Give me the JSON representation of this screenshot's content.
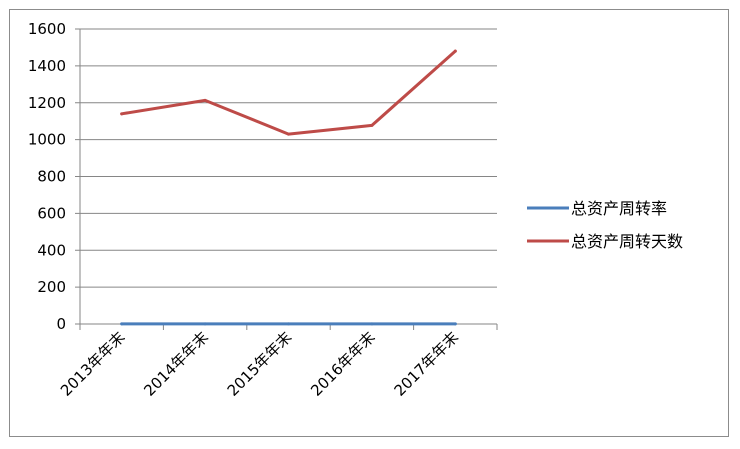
{
  "chart_data": {
    "type": "line",
    "categories": [
      "2013年年末",
      "2014年年末",
      "2015年年末",
      "2016年年末",
      "2017年年末"
    ],
    "series": [
      {
        "name": "总资产周转率",
        "values": [
          0.88,
          0.82,
          0.97,
          0.93,
          0.68
        ],
        "color": "#4a7ebb"
      },
      {
        "name": "总资产周转天数",
        "values": [
          1140,
          1213,
          1030,
          1077,
          1480
        ],
        "color": "#be4b48"
      }
    ],
    "ylim": [
      0,
      1600
    ],
    "yticks": [
      0,
      200,
      400,
      600,
      800,
      1000,
      1200,
      1400,
      1600
    ],
    "grid": true,
    "legend": "right",
    "title": "",
    "xlabel": "",
    "ylabel": ""
  }
}
